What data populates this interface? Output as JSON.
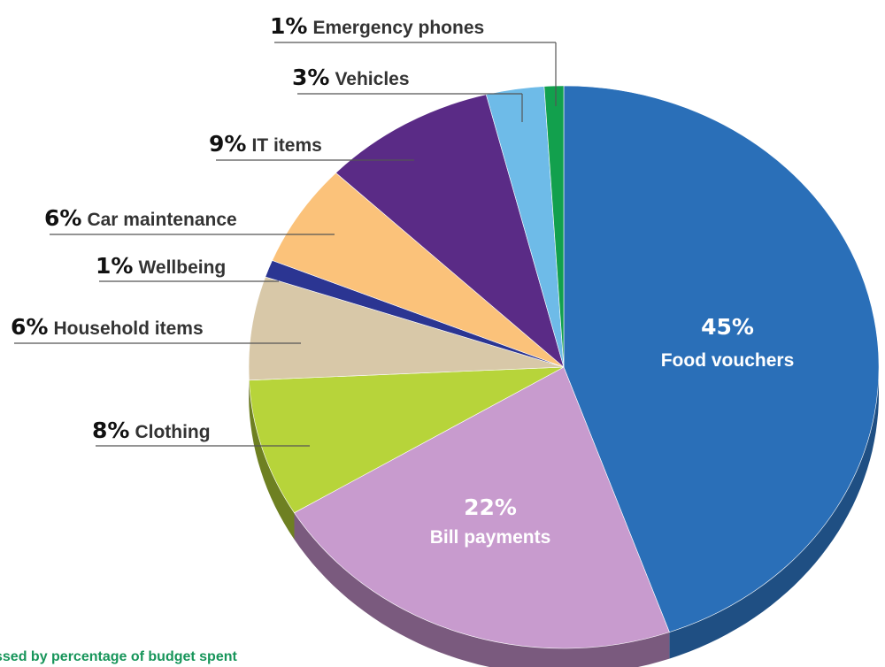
{
  "chart_data": {
    "type": "pie",
    "start_angle_deg": 0,
    "direction": "clockwise",
    "slices": [
      {
        "label": "Food vouchers",
        "value": 45,
        "value_label": "45%",
        "color": "#2a6fb8",
        "side_color": "#1f4f83",
        "label_inside": true
      },
      {
        "label": "Bill payments",
        "value": 22,
        "value_label": "22%",
        "color": "#c89bce",
        "side_color": "#7a5a7e",
        "label_inside": true
      },
      {
        "label": "Clothing",
        "value": 8,
        "value_label": "8%",
        "color": "#b7d43a",
        "side_color": "#6e8022",
        "label_inside": false
      },
      {
        "label": "Household items",
        "value": 6,
        "value_label": "6%",
        "color": "#d8c8a8",
        "side_color": "#8a7f69",
        "label_inside": false
      },
      {
        "label": "Wellbeing",
        "value": 1,
        "value_label": "1%",
        "color": "#2b3592",
        "side_color": "#1a1f57",
        "label_inside": false
      },
      {
        "label": "Car maintenance",
        "value": 6,
        "value_label": "6%",
        "color": "#fbc27a",
        "side_color": "#a07a4a",
        "label_inside": false
      },
      {
        "label": "IT items",
        "value": 9,
        "value_label": "9%",
        "color": "#5a2b86",
        "side_color": "#391a55",
        "label_inside": false
      },
      {
        "label": "Vehicles",
        "value": 3,
        "value_label": "3%",
        "color": "#6ebbe8",
        "side_color": "#457595",
        "label_inside": false
      },
      {
        "label": "Emergency phones",
        "value": 1,
        "value_label": "1%",
        "color": "#12a04d",
        "side_color": "#0b6330",
        "label_inside": false
      }
    ]
  },
  "caption": "ssed by percentage of budget spent"
}
